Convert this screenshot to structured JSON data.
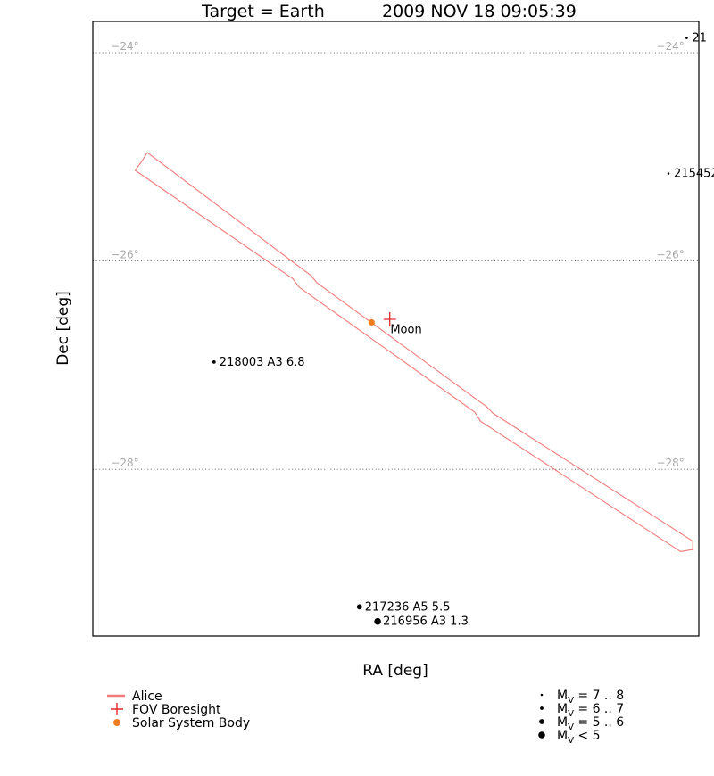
{
  "chart_data": {
    "type": "scatter",
    "title": {
      "target": "Target = Earth",
      "time": "2009 NOV 18 09:05:39"
    },
    "xlabel": "RA [deg]",
    "ylabel": "Dec [deg]",
    "ylim": [
      -29.6,
      -23.7
    ],
    "dec_gridlines": [
      {
        "dec": -24,
        "label": "−24°"
      },
      {
        "dec": -26,
        "label": "−26°"
      },
      {
        "dec": -28,
        "label": "−28°"
      }
    ],
    "stars": [
      {
        "id": "21",
        "label": "21",
        "mag": 7.5,
        "x": 0.98,
        "dec": -23.86
      },
      {
        "id": "215452",
        "label": "215452",
        "mag": 7.5,
        "x": 0.95,
        "dec": -25.16
      },
      {
        "id": "218003",
        "label": "218003 A3 6.8",
        "mag": 6.8,
        "x": 0.2,
        "dec": -26.97
      },
      {
        "id": "217236",
        "label": "217236 A5 5.5",
        "mag": 5.5,
        "x": 0.44,
        "dec": -29.32
      },
      {
        "id": "216956",
        "label": "216956 A3 1.3",
        "mag": 1.3,
        "x": 0.47,
        "dec": -29.46
      }
    ],
    "solar_system_bodies": [
      {
        "name": "Moon",
        "label": "Moon",
        "x": 0.46,
        "dec": -26.59
      }
    ],
    "boresight": {
      "x": 0.49,
      "dec": -26.56
    },
    "alice_fov": [
      [
        0.08,
        -25.05
      ],
      [
        0.09,
        -24.96
      ],
      [
        0.36,
        -26.14
      ],
      [
        0.37,
        -26.21
      ],
      [
        0.65,
        -27.4
      ],
      [
        0.66,
        -27.46
      ],
      [
        0.99,
        -28.69
      ],
      [
        0.99,
        -28.77
      ],
      [
        0.97,
        -28.79
      ],
      [
        0.64,
        -27.54
      ],
      [
        0.63,
        -27.45
      ],
      [
        0.34,
        -26.25
      ],
      [
        0.33,
        -26.17
      ],
      [
        0.07,
        -25.13
      ]
    ],
    "legend": {
      "placement": "bottom",
      "left": [
        {
          "kind": "line",
          "label": "Alice",
          "color": "#f27a7a"
        },
        {
          "kind": "plus",
          "label": "FOV Boresight",
          "color": "#e8262a"
        },
        {
          "kind": "dot",
          "label": "Solar System Body",
          "color": "#f07d1e"
        }
      ],
      "right": [
        {
          "mag": 7.5,
          "label": "M",
          "sub": "V",
          "range": " = 7 .. 8"
        },
        {
          "mag": 6.5,
          "label": "M",
          "sub": "V",
          "range": " = 6 .. 7"
        },
        {
          "mag": 5.5,
          "label": "M",
          "sub": "V",
          "range": " = 5 .. 6"
        },
        {
          "mag": 4.0,
          "label": "M",
          "sub": "V",
          "range": " < 5"
        }
      ]
    },
    "colors": {
      "fov": "#f27a7a",
      "boresight": "#e8262a",
      "body": "#f07d1e",
      "grid": "#a8a8a8",
      "stars": "#000000"
    }
  }
}
